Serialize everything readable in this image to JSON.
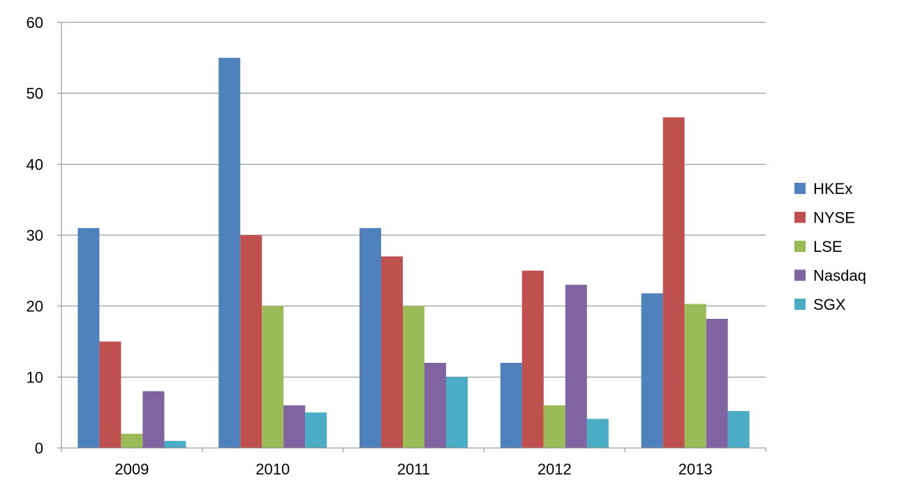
{
  "chart_data": {
    "type": "bar",
    "categories": [
      "2009",
      "2010",
      "2011",
      "2012",
      "2013"
    ],
    "series": [
      {
        "name": "HKEx",
        "color": "#4F81BD",
        "values": [
          31,
          55,
          31,
          12,
          21.8
        ]
      },
      {
        "name": "NYSE",
        "color": "#C0504D",
        "values": [
          15,
          30,
          27,
          25,
          46.6
        ]
      },
      {
        "name": "LSE",
        "color": "#9BBB59",
        "values": [
          2,
          20,
          20,
          6,
          20.3
        ]
      },
      {
        "name": "Nasdaq",
        "color": "#8064A2",
        "values": [
          8,
          6,
          12,
          23,
          18.2
        ]
      },
      {
        "name": "SGX",
        "color": "#4BACC6",
        "values": [
          1,
          5,
          10,
          4.1,
          5.2
        ]
      }
    ],
    "y_ticks": [
      "0",
      "10",
      "20",
      "30",
      "40",
      "50",
      "60"
    ],
    "ylim": [
      0,
      60
    ],
    "grid": true,
    "legend_position": "right"
  }
}
